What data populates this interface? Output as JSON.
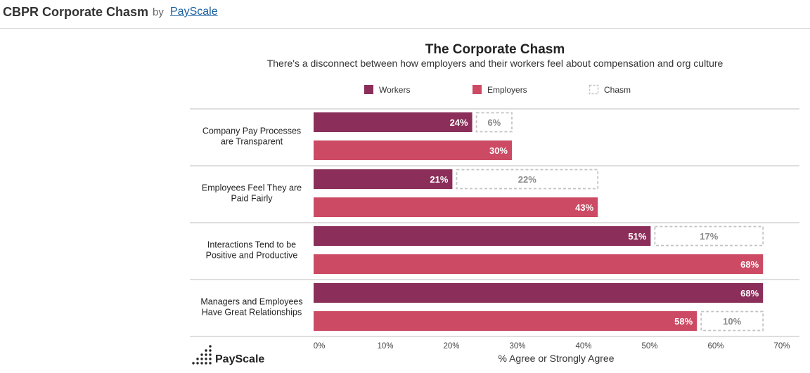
{
  "header": {
    "title": "CBPR Corporate Chasm",
    "by": "by",
    "link": "PayScale"
  },
  "brand": "PayScale",
  "colors": {
    "workers": "#8b2f5a",
    "employers": "#cc4a63",
    "chasm_border": "#c4c4c4",
    "divider": "#bdbdbd"
  },
  "chart_data": {
    "type": "bar",
    "orientation": "horizontal",
    "title": "The Corporate Chasm",
    "subtitle": "There's a disconnect between how employers and their workers feel about compensation and org culture",
    "xlabel": "% Agree or Strongly Agree",
    "xlim": [
      0,
      70
    ],
    "xticks": [
      "0%",
      "10%",
      "20%",
      "30%",
      "40%",
      "50%",
      "60%",
      "70%"
    ],
    "legend": [
      "Workers",
      "Employers",
      "Chasm"
    ],
    "legend_position": "top",
    "categories": [
      [
        "Company Pay Processes",
        "are Transparent"
      ],
      [
        "Employees Feel They are",
        "Paid Fairly"
      ],
      [
        "Interactions Tend to be",
        "Positive and Productive"
      ],
      [
        "Managers and Employees",
        "Have Great Relationships"
      ]
    ],
    "series": [
      {
        "name": "Workers",
        "values": [
          24,
          21,
          51,
          68
        ],
        "labels": [
          "24%",
          "21%",
          "51%",
          "68%"
        ]
      },
      {
        "name": "Employers",
        "values": [
          30,
          43,
          68,
          58
        ],
        "labels": [
          "30%",
          "43%",
          "68%",
          "58%"
        ]
      }
    ],
    "chasm": [
      {
        "value": 6,
        "label": "6%",
        "row": "Workers"
      },
      {
        "value": 22,
        "label": "22%",
        "row": "Workers"
      },
      {
        "value": 17,
        "label": "17%",
        "row": "Workers"
      },
      {
        "value": 10,
        "label": "10%",
        "row": "Employers"
      }
    ]
  }
}
